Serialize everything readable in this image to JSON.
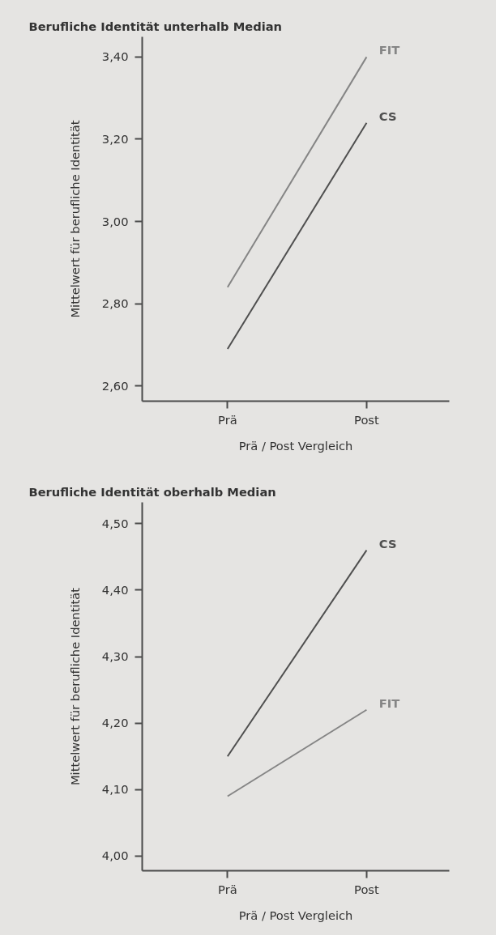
{
  "chart_data": [
    {
      "type": "line",
      "title": "Berufliche Identität unterhalb Median",
      "xlabel": "Prä / Post Vergleich",
      "ylabel": "Mittelwert für berufliche Identität",
      "categories": [
        "Prä",
        "Post"
      ],
      "series": [
        {
          "name": "FIT",
          "color": "#858585",
          "values": [
            2.84,
            3.4
          ]
        },
        {
          "name": "CS",
          "color": "#4f4f4f",
          "values": [
            2.69,
            3.24
          ]
        }
      ],
      "ylim": [
        2.563,
        3.449
      ],
      "yticks": [
        {
          "value": 2.6,
          "label": "2,60"
        },
        {
          "value": 2.8,
          "label": "2,80"
        },
        {
          "value": 3.0,
          "label": "3,00"
        },
        {
          "value": 3.2,
          "label": "3,20"
        },
        {
          "value": 3.4,
          "label": "3,40"
        }
      ],
      "marker": "none",
      "line_style": "solid"
    },
    {
      "type": "line",
      "title": "Berufliche Identität oberhalb Median",
      "xlabel": "Prä / Post Vergleich",
      "ylabel": "Mittelwert für berufliche Identität",
      "categories": [
        "Prä",
        "Post"
      ],
      "series": [
        {
          "name": "CS",
          "color": "#4f4f4f",
          "values": [
            4.15,
            4.46
          ]
        },
        {
          "name": "FIT",
          "color": "#858585",
          "values": [
            4.09,
            4.22
          ]
        }
      ],
      "ylim": [
        3.978,
        4.532
      ],
      "yticks": [
        {
          "value": 4.0,
          "label": "4,00"
        },
        {
          "value": 4.1,
          "label": "4,10"
        },
        {
          "value": 4.2,
          "label": "4,20"
        },
        {
          "value": 4.3,
          "label": "4,30"
        },
        {
          "value": 4.4,
          "label": "4,40"
        },
        {
          "value": 4.5,
          "label": "4,50"
        }
      ],
      "marker": "none",
      "line_style": "solid"
    }
  ]
}
